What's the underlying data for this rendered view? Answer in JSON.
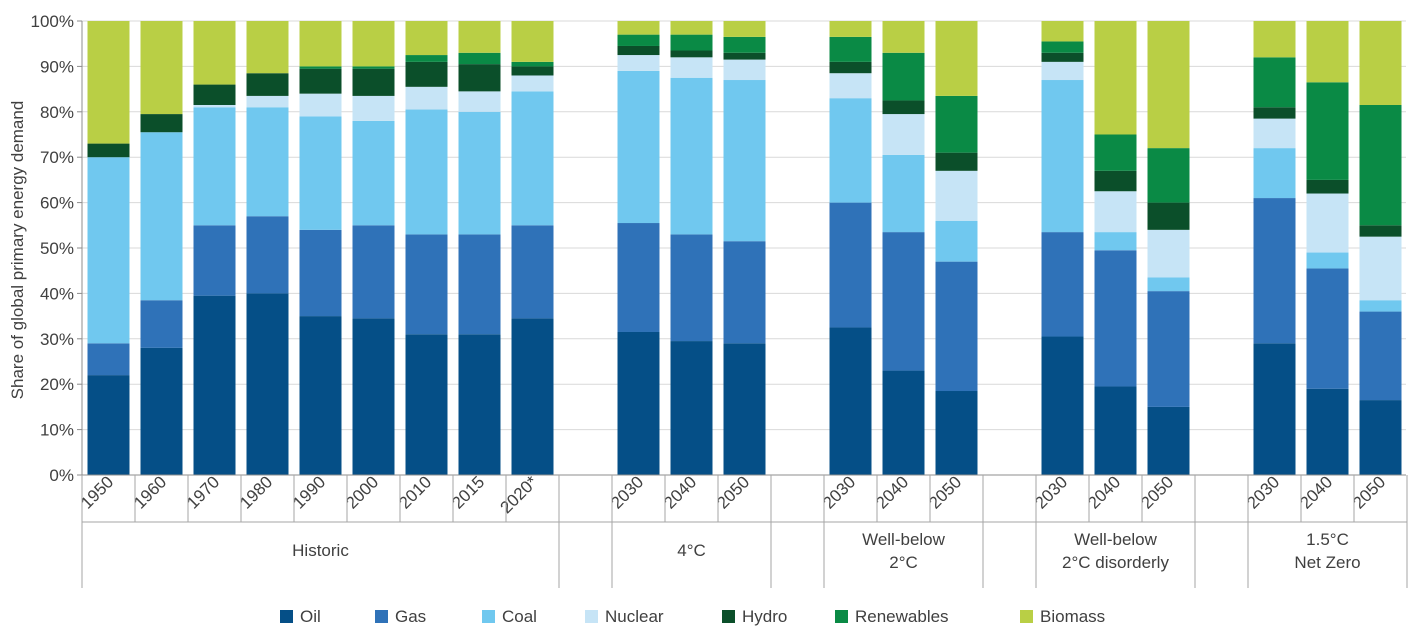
{
  "chart_data": {
    "type": "bar",
    "stacked": true,
    "ylabel": "Share of global primary energy demand",
    "ylim": [
      0,
      100
    ],
    "yticks": [
      "0%",
      "10%",
      "20%",
      "30%",
      "40%",
      "50%",
      "60%",
      "70%",
      "80%",
      "90%",
      "100%"
    ],
    "legend_position": "bottom",
    "series": [
      {
        "name": "Oil",
        "color": "#054f87"
      },
      {
        "name": "Gas",
        "color": "#2f72b8"
      },
      {
        "name": "Coal",
        "color": "#70c8ef"
      },
      {
        "name": "Nuclear",
        "color": "#c6e4f6"
      },
      {
        "name": "Hydro",
        "color": "#0b4f2a"
      },
      {
        "name": "Renewables",
        "color": "#0a8a45"
      },
      {
        "name": "Biomass",
        "color": "#b9cf45"
      }
    ],
    "groups": [
      {
        "label": [
          "Historic"
        ],
        "bars": [
          {
            "category": "1950",
            "values": [
              22,
              7,
              41,
              0,
              3,
              0,
              27
            ]
          },
          {
            "category": "1960",
            "values": [
              28,
              10.5,
              37,
              0,
              4,
              0,
              20.5
            ]
          },
          {
            "category": "1970",
            "values": [
              39.5,
              15.5,
              26,
              0.5,
              4.5,
              0,
              14
            ]
          },
          {
            "category": "1980",
            "values": [
              40,
              17,
              24,
              2.5,
              5,
              0,
              11.5
            ]
          },
          {
            "category": "1990",
            "values": [
              35,
              19,
              25,
              5,
              5.5,
              0.5,
              10
            ]
          },
          {
            "category": "2000",
            "values": [
              34.5,
              20.5,
              23,
              5.5,
              6,
              0.5,
              10
            ]
          },
          {
            "category": "2010",
            "values": [
              31,
              22,
              27.5,
              5,
              5.5,
              1.5,
              7.5
            ]
          },
          {
            "category": "2015",
            "values": [
              31,
              22,
              27,
              4.5,
              6,
              2.5,
              7
            ]
          },
          {
            "category": "2020*",
            "values": [
              34.5,
              20.5,
              29.5,
              3.5,
              2,
              1,
              9
            ]
          }
        ]
      },
      {
        "label": [
          "4°C"
        ],
        "bars": [
          {
            "category": "2030",
            "values": [
              31.5,
              24,
              33.5,
              3.5,
              2,
              2.5,
              3
            ]
          },
          {
            "category": "2040",
            "values": [
              29.5,
              23.5,
              34.5,
              4.5,
              1.5,
              3.5,
              3
            ]
          },
          {
            "category": "2050",
            "values": [
              29,
              22.5,
              35.5,
              4.5,
              1.5,
              3.5,
              3.5
            ]
          }
        ]
      },
      {
        "label": [
          "Well-below",
          "2°C"
        ],
        "bars": [
          {
            "category": "2030",
            "values": [
              32.5,
              27.5,
              23,
              5.5,
              2.5,
              5.5,
              3.5
            ]
          },
          {
            "category": "2040",
            "values": [
              23,
              30.5,
              17,
              9,
              3,
              10.5,
              7
            ]
          },
          {
            "category": "2050",
            "values": [
              18.5,
              28.5,
              9,
              11,
              4,
              12.5,
              16.5
            ]
          }
        ]
      },
      {
        "label": [
          "Well-below",
          "2°C disorderly"
        ],
        "bars": [
          {
            "category": "2030",
            "values": [
              30.5,
              23,
              33.5,
              4,
              2,
              2.5,
              4.5
            ]
          },
          {
            "category": "2040",
            "values": [
              19.5,
              30,
              4,
              9,
              4.5,
              8,
              25
            ]
          },
          {
            "category": "2050",
            "values": [
              15,
              25.5,
              3,
              10.5,
              6,
              12,
              28
            ]
          }
        ]
      },
      {
        "label": [
          "1.5°C",
          "Net Zero"
        ],
        "bars": [
          {
            "category": "2030",
            "values": [
              29,
              32,
              11,
              6.5,
              2.5,
              11,
              8
            ]
          },
          {
            "category": "2040",
            "values": [
              19,
              26.5,
              3.5,
              13,
              3,
              21.5,
              13.5
            ]
          },
          {
            "category": "2050",
            "values": [
              16.5,
              19.5,
              2.5,
              14,
              2.5,
              26.5,
              18.5
            ]
          }
        ]
      }
    ]
  }
}
